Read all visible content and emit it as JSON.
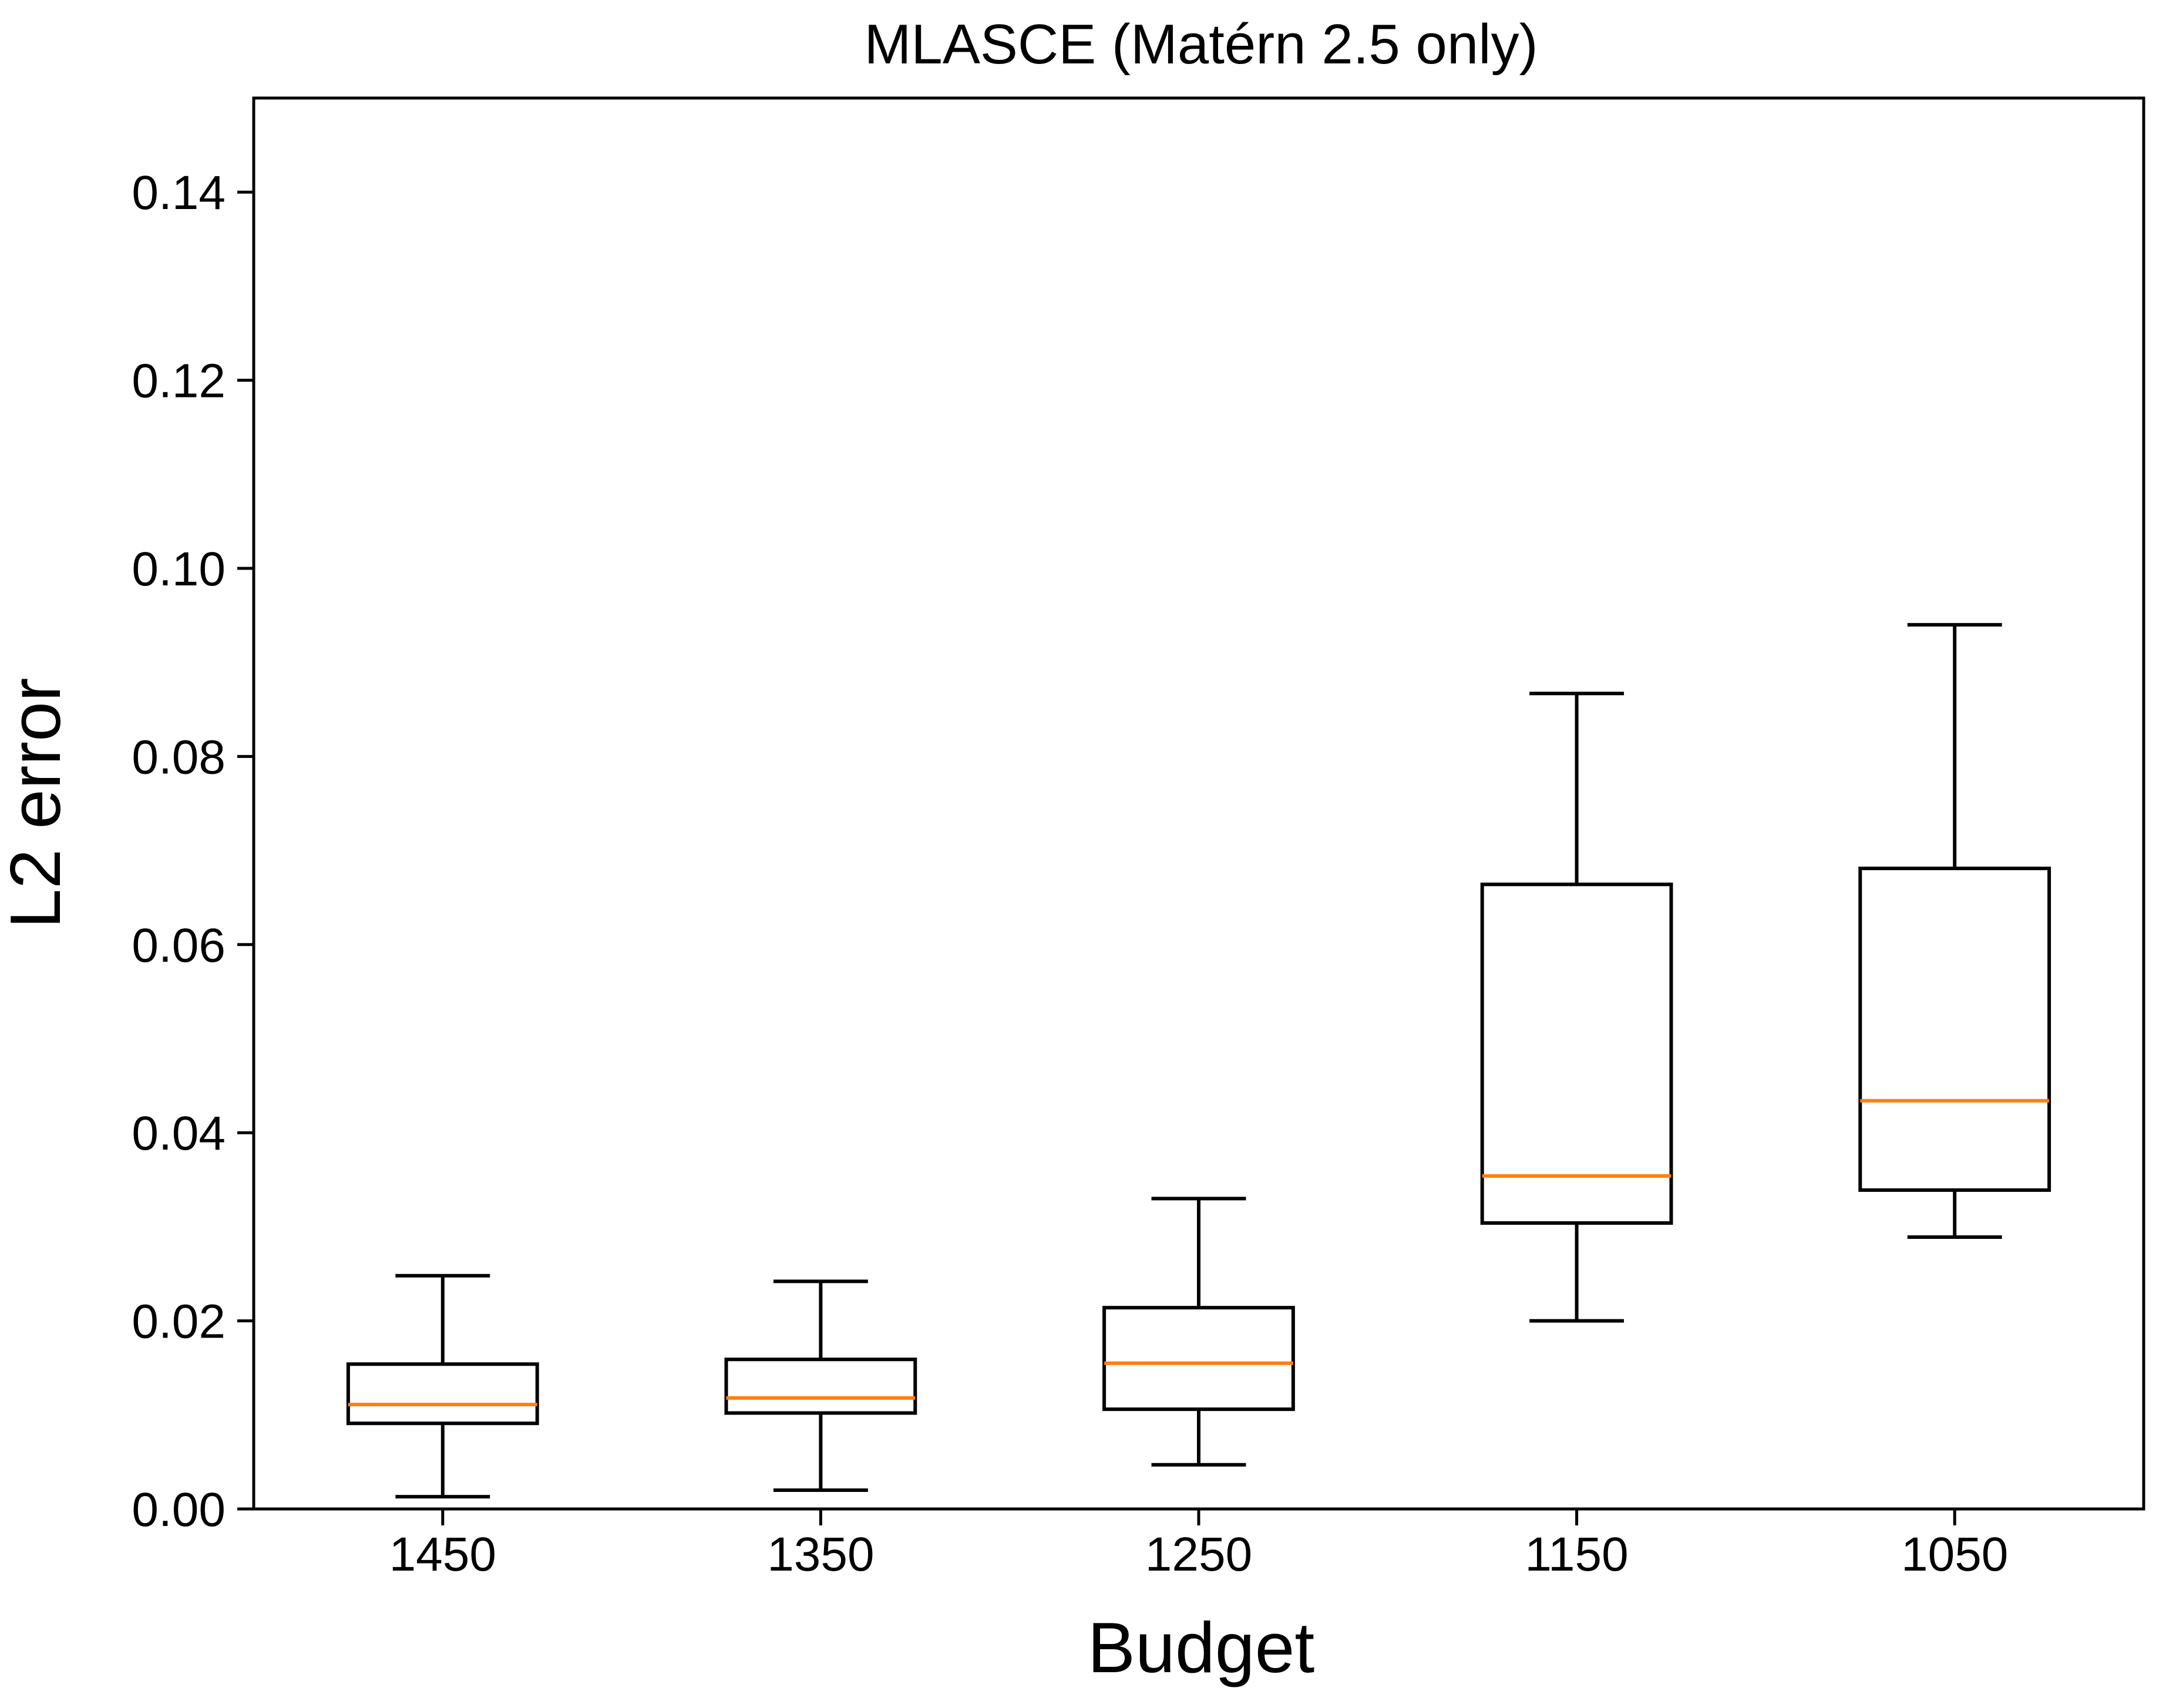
{
  "chart_data": {
    "type": "box",
    "title": "MLASCE (Matérn 2.5 only)",
    "xlabel": "Budget",
    "ylabel": "L2 error",
    "ylim": [
      0,
      0.15
    ],
    "yticks": [
      0.0,
      0.02,
      0.04,
      0.06,
      0.08,
      0.1,
      0.12,
      0.14
    ],
    "ytick_labels": [
      "0.00",
      "0.02",
      "0.04",
      "0.06",
      "0.08",
      "0.10",
      "0.12",
      "0.14"
    ],
    "categories": [
      "1450",
      "1350",
      "1250",
      "1150",
      "1050"
    ],
    "boxes": [
      {
        "label": "1450",
        "whisker_low": 0.0013,
        "q1": 0.0091,
        "median": 0.0111,
        "q3": 0.0154,
        "whisker_high": 0.0248
      },
      {
        "label": "1350",
        "whisker_low": 0.002,
        "q1": 0.0102,
        "median": 0.0118,
        "q3": 0.0159,
        "whisker_high": 0.0242
      },
      {
        "label": "1250",
        "whisker_low": 0.0047,
        "q1": 0.0106,
        "median": 0.0155,
        "q3": 0.0214,
        "whisker_high": 0.033
      },
      {
        "label": "1150",
        "whisker_low": 0.02,
        "q1": 0.0304,
        "median": 0.0354,
        "q3": 0.0664,
        "whisker_high": 0.0867
      },
      {
        "label": "1050",
        "whisker_low": 0.0289,
        "q1": 0.0339,
        "median": 0.0434,
        "q3": 0.0681,
        "whisker_high": 0.094
      }
    ],
    "colors": {
      "box": "#000000",
      "median": "#ff7f0e",
      "axes": "#000000"
    },
    "grid": false,
    "legend": "none"
  }
}
